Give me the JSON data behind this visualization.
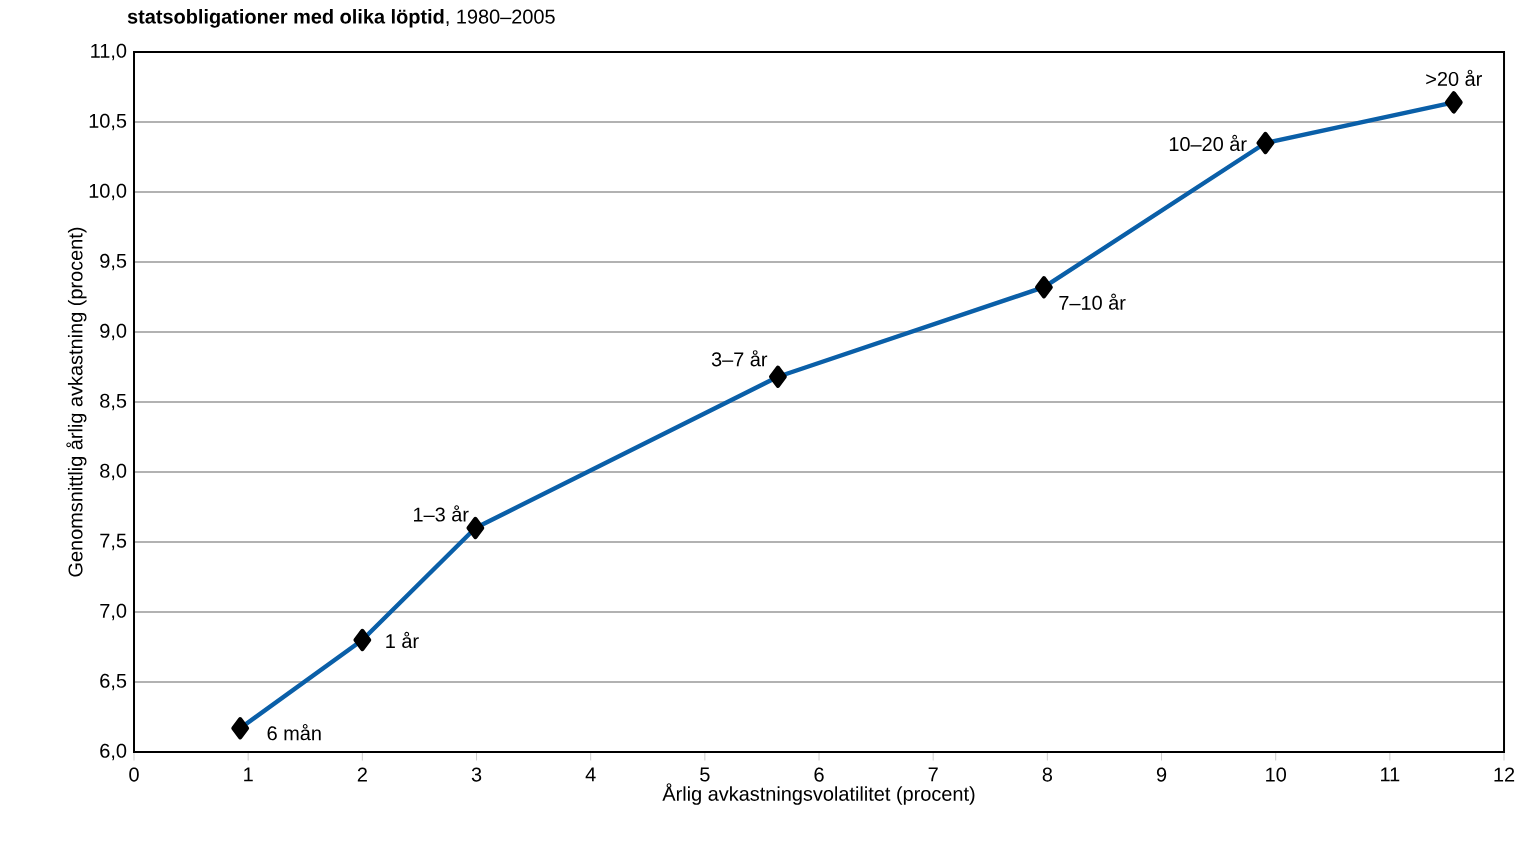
{
  "chart_data": {
    "type": "line",
    "title": "**statsobligationer med olika löptid**, 1980–2005",
    "xlabel": "Årlig avkastningsvolatilitet (procent)",
    "ylabel": "Genomsnittlig årlig avkastning (procent)",
    "series": [
      {
        "color": "#0a5fa8",
        "x": [
          0.93,
          2.0,
          2.99,
          5.64,
          7.97,
          9.91,
          11.56
        ],
        "values": [
          6.17,
          6.8,
          7.6,
          8.68,
          9.32,
          10.35,
          10.64
        ]
      }
    ],
    "annotations": [
      {
        "text": "6 mån",
        "x": 0.93,
        "y": 6.17
      },
      {
        "text": "1 år",
        "x": 2.0,
        "y": 6.8
      },
      {
        "text": "1–3 år",
        "x": 2.99,
        "y": 7.6
      },
      {
        "text": "3–7 år",
        "x": 5.64,
        "y": 8.68
      },
      {
        "text": "7–10 år",
        "x": 7.97,
        "y": 9.32
      },
      {
        "text": "10–20 år",
        "x": 9.91,
        "y": 10.35
      },
      {
        "text": ">20 år",
        "x": 11.56,
        "y": 10.64
      }
    ],
    "xlim": [
      0,
      12
    ],
    "xticks": [
      0,
      1,
      2,
      3,
      4,
      5,
      6,
      7,
      8,
      9,
      10,
      11,
      12
    ],
    "ylim": [
      6,
      11
    ],
    "yticks": [
      {
        "value": 6,
        "label": "6,0"
      },
      {
        "value": 6.5,
        "label": "6,5"
      },
      {
        "value": 7,
        "label": "7,0"
      },
      {
        "value": 7.5,
        "label": "7,5"
      },
      {
        "value": 8,
        "label": "8,0"
      },
      {
        "value": 8.5,
        "label": "8,5"
      },
      {
        "value": 9,
        "label": "9,0"
      },
      {
        "value": 9.5,
        "label": "9,5"
      },
      {
        "value": 10,
        "label": "10,0"
      },
      {
        "value": 10.5,
        "label": "10,5"
      },
      {
        "value": 11,
        "label": "11,0"
      }
    ],
    "grid": "y",
    "marker": "diamond",
    "line_style": "solid"
  }
}
